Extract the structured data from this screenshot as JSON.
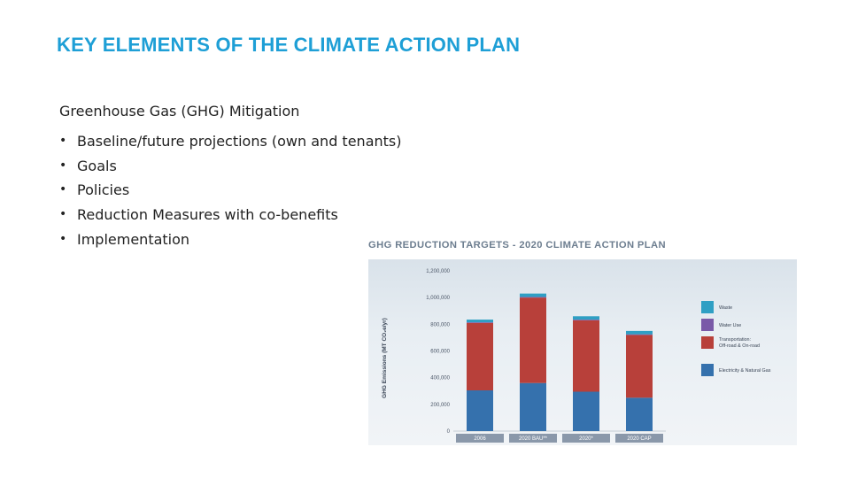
{
  "slide": {
    "title": "KEY ELEMENTS OF THE CLIMATE ACTION PLAN",
    "section_heading": "Greenhouse Gas (GHG) Mitigation",
    "bullets": [
      "Baseline/future projections (own and tenants)",
      "Goals",
      "Policies",
      "Reduction Measures with co-benefits",
      "Implementation"
    ],
    "bullet_glyph": "•"
  },
  "colors": {
    "title": "#1e9fd6",
    "waste": "#2f9fc4",
    "water_use": "#7a5aa8",
    "transportation": "#b8403a",
    "electricity": "#3571ad"
  },
  "chart_data": {
    "type": "bar",
    "stacked": true,
    "title": "GHG REDUCTION TARGETS - 2020 CLIMATE ACTION PLAN",
    "ylabel": "GHG Emissions (MT CO₂e/yr)",
    "categories": [
      "2006",
      "2020 BAU**",
      "2020*",
      "2020 CAP"
    ],
    "y_ticks": [
      "0",
      "200,000",
      "400,000",
      "600,000",
      "800,000",
      "1,000,000",
      "1,200,000"
    ],
    "ylim": [
      0,
      1200000
    ],
    "grid": false,
    "legend_position": "right",
    "series": [
      {
        "name": "Electricity & Natural Gas",
        "color": "#3571ad",
        "values": [
          305000,
          360000,
          295000,
          250000
        ]
      },
      {
        "name": "Transportation: Off-road & On-road",
        "color": "#b8403a",
        "values": [
          505000,
          640000,
          535000,
          470000
        ]
      },
      {
        "name": "Water Use",
        "color": "#7a5aa8",
        "values": [
          5000,
          5000,
          5000,
          5000
        ]
      },
      {
        "name": "Waste",
        "color": "#2f9fc4",
        "values": [
          20000,
          25000,
          25000,
          25000
        ]
      }
    ],
    "legend_order": [
      "Waste",
      "Water Use",
      "Transportation: Off-road & On-road",
      "Electricity & Natural Gas"
    ]
  }
}
